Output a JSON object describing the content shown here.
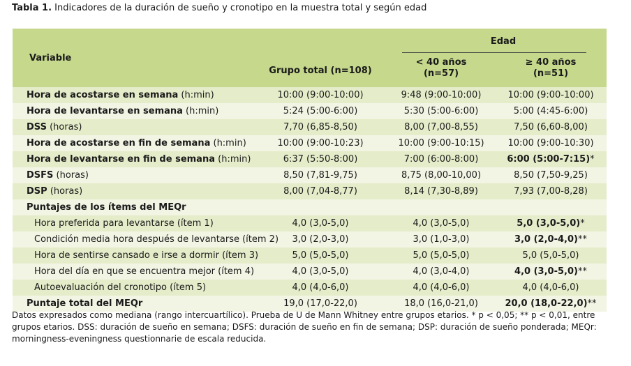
{
  "title": {
    "prefix": "Tabla 1.",
    "text": "Indicadores de la duración de sueño y cronotipo en la muestra total y según edad"
  },
  "header": {
    "variable": "Variable",
    "group_total": "Grupo total (n=108)",
    "edad": "Edad",
    "col_lt40_line1": "< 40 años",
    "col_lt40_line2": "(n=57)",
    "col_ge40_line1": "≥ 40 años",
    "col_ge40_line2": "(n=51)"
  },
  "rows": [
    {
      "label_bold": "Hora de acostarse en semana",
      "label_rest": " (h:min)",
      "total": "10:00 (9:00-10:00)",
      "lt40": "9:48 (9:00-10:00)",
      "ge40": "10:00 (9:00-10:00)",
      "ge40_sig": ""
    },
    {
      "label_bold": "Hora de levantarse en semana",
      "label_rest": " (h:min)",
      "total": "5:24 (5:00-6:00)",
      "lt40": "5:30 (5:00-6:00)",
      "ge40": "5:00 (4:45-6:00)",
      "ge40_sig": ""
    },
    {
      "label_bold": "DSS",
      "label_rest": " (horas)",
      "total": "7,70 (6,85-8,50)",
      "lt40": "8,00 (7,00-8,55)",
      "ge40": "7,50 (6,60-8,00)",
      "ge40_sig": ""
    },
    {
      "label_bold": "Hora de acostarse en fin de semana",
      "label_rest": " (h:min)",
      "total": "10:00 (9:00-10:23)",
      "lt40": "10:00 (9:00-10:15)",
      "ge40": "10:00 (9:00-10:30)",
      "ge40_sig": ""
    },
    {
      "label_bold": "Hora de levantarse en fin de semana",
      "label_rest": " (h:min)",
      "total": "6:37 (5:50-8:00)",
      "lt40": "7:00 (6:00-8:00)",
      "ge40_bold": "6:00 (5:00-7:15)",
      "ge40_sig": "*"
    },
    {
      "label_bold": "DSFS",
      "label_rest": " (horas)",
      "total": "8,50 (7,81-9,75)",
      "lt40": "8,75 (8,00-10,00)",
      "ge40": "8,50 (7,50-9,25)",
      "ge40_sig": ""
    },
    {
      "label_bold": "DSP",
      "label_rest": " (horas)",
      "total": "8,00 (7,04-8,77)",
      "lt40": "8,14 (7,30-8,89)",
      "ge40": "7,93 (7,00-8,28)",
      "ge40_sig": ""
    },
    {
      "label_bold": "Puntajes de los ítems del MEQr",
      "label_rest": "",
      "total": "",
      "lt40": "",
      "ge40": "",
      "ge40_sig": ""
    },
    {
      "sub": true,
      "label_rest": "Hora preferida para levantarse (ítem 1)",
      "total": "4,0 (3,0-5,0)",
      "lt40": "4,0 (3,0-5,0)",
      "ge40_bold": "5,0 (3,0-5,0)",
      "ge40_sig": "*"
    },
    {
      "sub": true,
      "label_rest": "Condición media hora después de levantarse (ítem 2)",
      "total": "3,0 (2,0-3,0)",
      "lt40": "3,0 (1,0-3,0)",
      "ge40_bold": "3,0 (2,0-4,0)",
      "ge40_sig": "**"
    },
    {
      "sub": true,
      "label_rest": "Hora de sentirse cansado e irse a dormir (ítem 3)",
      "total": "5,0 (5,0-5,0)",
      "lt40": "5,0 (5,0-5,0)",
      "ge40": "5,0 (5,0-5,0)",
      "ge40_sig": ""
    },
    {
      "sub": true,
      "label_rest": "Hora del día en que se encuentra mejor (ítem 4)",
      "total": "4,0 (3,0-5,0)",
      "lt40": "4,0 (3,0-4,0)",
      "ge40_bold": "4,0 (3,0-5,0)",
      "ge40_sig": "**"
    },
    {
      "sub": true,
      "label_rest": "Autoevaluación del cronotipo (ítem 5)",
      "total": "4,0 (4,0-6,0)",
      "lt40": "4,0 (4,0-6,0)",
      "ge40": "4,0 (4,0-6,0)",
      "ge40_sig": ""
    },
    {
      "label_bold": "Puntaje total del MEQr",
      "label_rest": "",
      "total": "19,0 (17,0-22,0)",
      "lt40": "18,0 (16,0-21,0)",
      "ge40_bold": "20,0 (18,0-22,0)",
      "ge40_sig": "**"
    }
  ],
  "footnote": "Datos expresados como mediana (rango intercuartílico). Prueba de U de Mann Whitney entre grupos etarios. * p < 0,05; ** p < 0,01, entre grupos etarios. DSS: duración de sueño en semana; DSFS: duración de sueño en fin de semana; DSP: duración de sueño ponderada; MEQr: morningness-eveningness questionnarie de escala reducida.",
  "colors": {
    "header_bg": "#c5d88c",
    "row_odd": "#e4ecc9",
    "row_even": "#f2f5e4"
  }
}
